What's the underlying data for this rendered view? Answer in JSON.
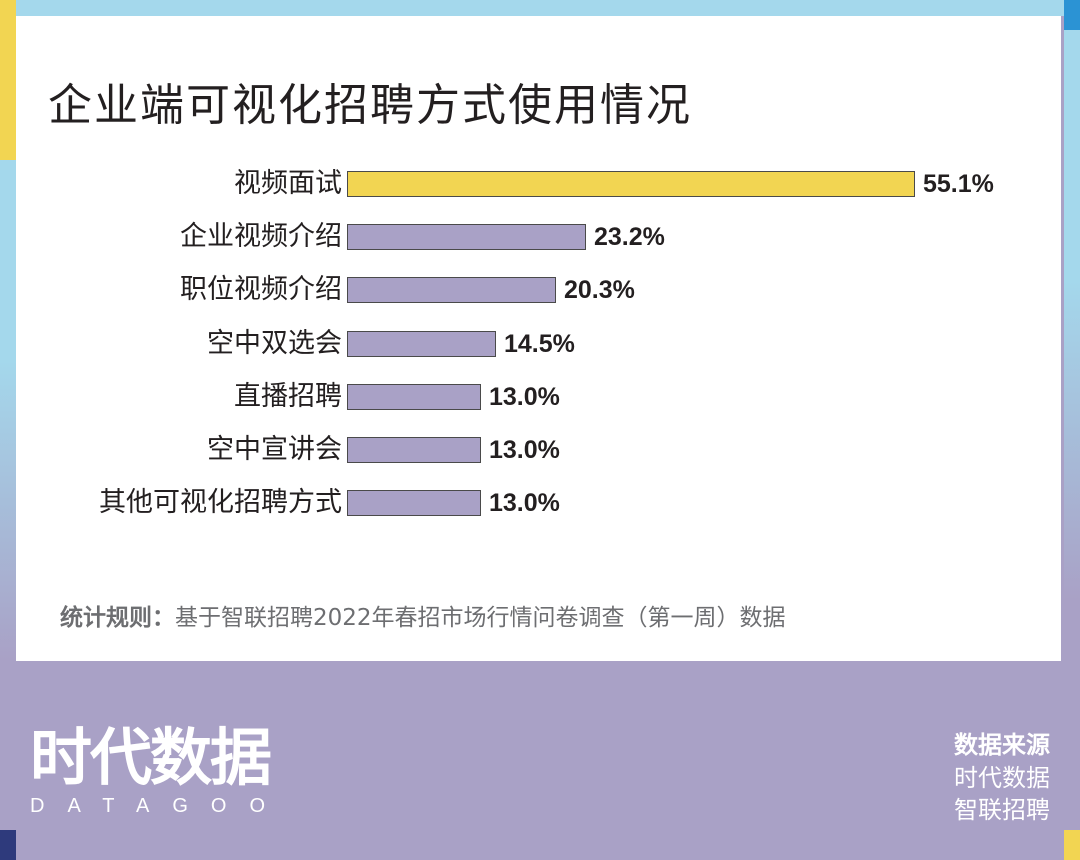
{
  "title": "企业端可视化招聘方式使用情况",
  "note": {
    "label": "统计规则：",
    "text": "基于智联招聘2022年春招市场行情问卷调查（第一周）数据"
  },
  "logo": {
    "cn": "时代数据",
    "en": "DATAGOO"
  },
  "source": {
    "heading": "数据来源",
    "items": [
      "时代数据",
      "智联招聘"
    ]
  },
  "colors": {
    "highlight": "#f2d552",
    "bar": "#a9a1c6",
    "frame_blue": "#a4d8ec",
    "footer": "#a9a1c6"
  },
  "chart_data": {
    "type": "bar",
    "orientation": "horizontal",
    "title": "企业端可视化招聘方式使用情况",
    "categories": [
      "视频面试",
      "企业视频介绍",
      "职位视频介绍",
      "空中双选会",
      "直播招聘",
      "空中宣讲会",
      "其他可视化招聘方式"
    ],
    "values": [
      55.1,
      23.2,
      20.3,
      14.5,
      13.0,
      13.0,
      13.0
    ],
    "value_labels": [
      "55.1%",
      "23.2%",
      "20.3%",
      "14.5%",
      "13.0%",
      "13.0%",
      "13.0%"
    ],
    "unit": "%",
    "highlight_index": 0,
    "xlabel": "",
    "ylabel": "",
    "grid": false,
    "legend": "none"
  }
}
